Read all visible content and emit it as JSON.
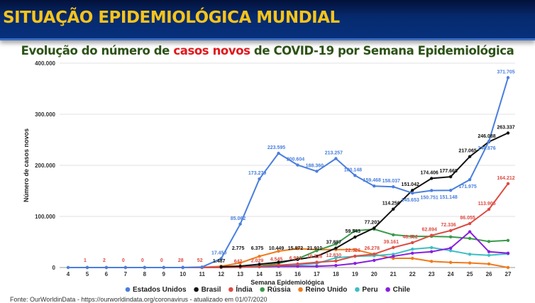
{
  "header": {
    "title": "SITUAÇÃO EPIDEMIOLÓGICA MUNDIAL"
  },
  "subtitle": {
    "part1": "Evolução do número de ",
    "highlight": "casos novos",
    "part2": " de COVID-19 por Semana Epidemiológica"
  },
  "footer": {
    "source": "Fonte: OurWorldinData - https://ourworldindata.org/coronavirus - atualizado em 01/07/2020"
  },
  "colors": {
    "header_bg": "#062a6e",
    "header_text": "#f6c41a",
    "subtitle": "#2c5217",
    "highlight": "#e0181c"
  },
  "chart_data": {
    "type": "line",
    "xlabel": "Semana Epidemiológica",
    "ylabel": "Número de casos novos",
    "ylim": [
      0,
      400000
    ],
    "yticks": [
      0,
      100000,
      200000,
      300000,
      400000
    ],
    "ytick_labels": [
      "0",
      "100.000",
      "200.000",
      "300.000",
      "400.000"
    ],
    "x": [
      4,
      5,
      6,
      7,
      8,
      9,
      10,
      11,
      12,
      13,
      14,
      15,
      16,
      17,
      18,
      19,
      20,
      21,
      22,
      23,
      24,
      25,
      26,
      27
    ],
    "grid": true,
    "legend": "bottom",
    "series": [
      {
        "name": "Estados Unidos",
        "color": "#4a7fdc",
        "values": [
          0,
          0,
          0,
          0,
          0,
          0,
          0,
          1000,
          17450,
          85062,
          173279,
          223595,
          200604,
          188360,
          213257,
          180148,
          159468,
          158037,
          145653,
          150751,
          151148,
          171975,
          246876,
          371705
        ],
        "labeled_weeks": [
          12,
          13,
          14,
          15,
          16,
          17,
          18,
          19,
          20,
          21,
          22,
          23,
          24,
          25,
          26,
          27
        ]
      },
      {
        "name": "Brasil",
        "color": "#111111",
        "values": [
          null,
          null,
          null,
          null,
          null,
          null,
          null,
          null,
          1487,
          2775,
          6375,
          10449,
          15872,
          21910,
          37887,
          59543,
          77203,
          114256,
          151042,
          174406,
          177668,
          217065,
          246088,
          263337
        ],
        "labeled_weeks": [
          12,
          13,
          14,
          15,
          16,
          17,
          18,
          19,
          20,
          21,
          22,
          23,
          24,
          25,
          26,
          27
        ]
      },
      {
        "name": "Índia",
        "color": "#dc4b43",
        "values": [
          null,
          1,
          2,
          0,
          0,
          0,
          28,
          52,
          400,
          642,
          2029,
          4545,
          6931,
          10328,
          12830,
          22326,
          26278,
          39161,
          48662,
          62894,
          72336,
          86055,
          113905,
          164212
        ],
        "labeled_weeks": [
          5,
          6,
          7,
          8,
          9,
          10,
          11,
          13,
          14,
          15,
          16,
          17,
          18,
          19,
          20,
          21,
          22,
          23,
          24,
          25,
          26,
          27
        ]
      },
      {
        "name": "Rússia",
        "color": "#3a9a4a",
        "values": [
          null,
          null,
          null,
          null,
          null,
          null,
          0,
          100,
          300,
          1000,
          3000,
          8000,
          17000,
          33000,
          46000,
          72000,
          75000,
          64000,
          61000,
          61000,
          60000,
          57000,
          51000,
          53000
        ],
        "labeled_weeks": []
      },
      {
        "name": "Reino Unido",
        "color": "#f07a1a",
        "values": [
          null,
          0,
          0,
          0,
          0,
          0,
          0,
          200,
          2500,
          9000,
          22000,
          32000,
          37000,
          35000,
          35000,
          35000,
          26000,
          18000,
          18000,
          12000,
          10000,
          9000,
          7000,
          0
        ],
        "labeled_weeks": []
      },
      {
        "name": "Peru",
        "color": "#3cbfc4",
        "values": [
          null,
          null,
          null,
          null,
          null,
          null,
          0,
          100,
          300,
          600,
          1500,
          3000,
          5000,
          8000,
          19000,
          22000,
          23000,
          26000,
          36000,
          39000,
          33000,
          26000,
          24000,
          27000
        ],
        "labeled_weeks": []
      },
      {
        "name": "Chile",
        "color": "#8a1ee0",
        "values": [
          null,
          null,
          null,
          null,
          null,
          null,
          0,
          100,
          500,
          1500,
          2000,
          2500,
          2500,
          2500,
          4000,
          8000,
          14000,
          22000,
          28000,
          31000,
          38000,
          70000,
          31000,
          28000
        ],
        "labeled_weeks": []
      }
    ]
  }
}
